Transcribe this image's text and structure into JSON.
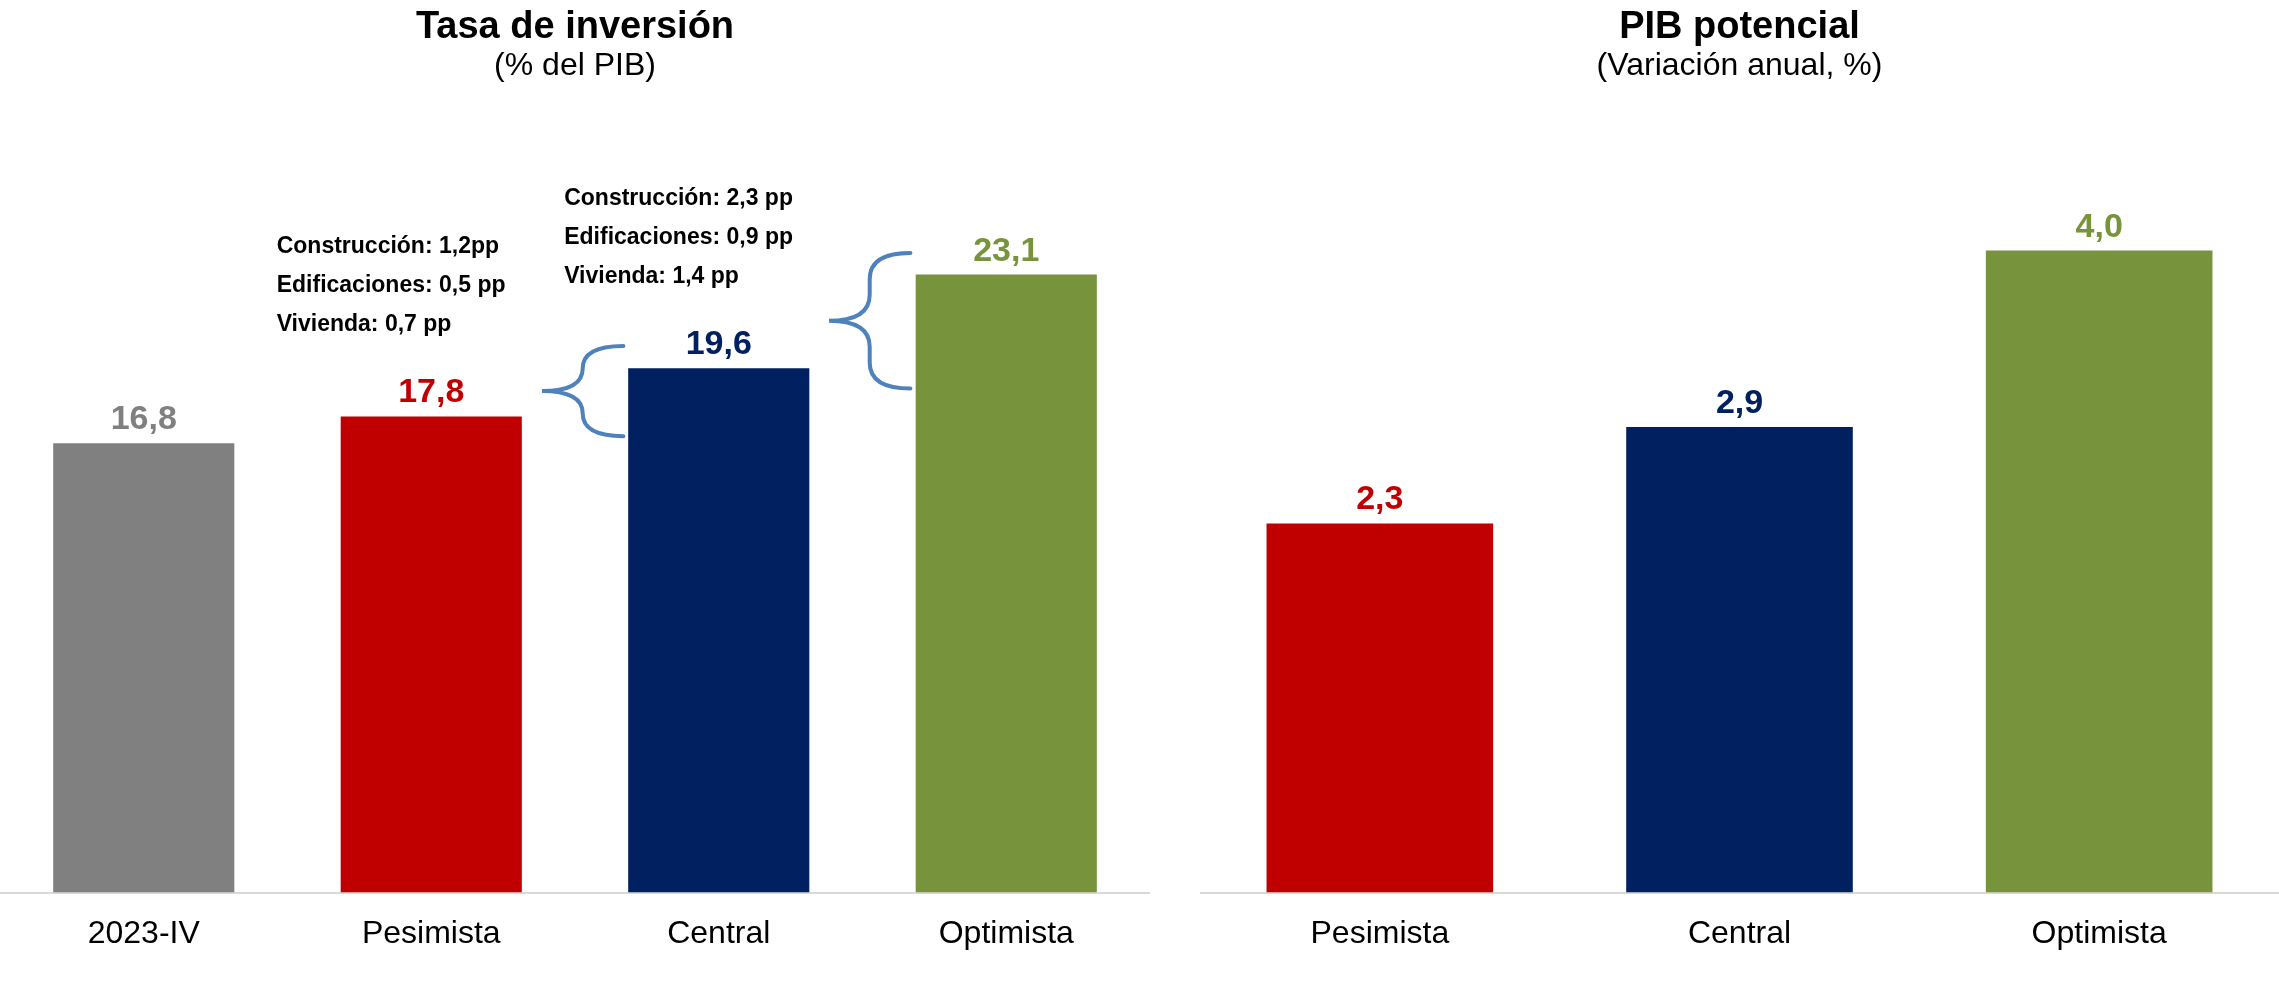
{
  "chart_data": [
    {
      "type": "bar",
      "title": "Tasa de inversión",
      "subtitle": "(% del PIB)",
      "categories": [
        "2023-IV",
        "Pesimista",
        "Central",
        "Optimista"
      ],
      "values": [
        16.8,
        17.8,
        19.6,
        23.1
      ],
      "value_labels": [
        "16,8",
        "17,8",
        "19,6",
        "23,1"
      ],
      "colors": [
        "#808080",
        "#c00000",
        "#002060",
        "#77933c"
      ],
      "annotations": [
        "Construcción: 1,2pp\nEdificaciones: 0,5 pp\nVivienda: 0,7 pp",
        "Construcción: 2,3 pp\nEdificaciones: 0,9 pp\nVivienda: 1,4 pp"
      ]
    },
    {
      "type": "bar",
      "title": "PIB potencial",
      "subtitle": "(Variación anual, %)",
      "categories": [
        "Pesimista",
        "Central",
        "Optimista"
      ],
      "values": [
        2.3,
        2.9,
        4.0
      ],
      "value_labels": [
        "2,3",
        "2,9",
        "4,0"
      ],
      "colors": [
        "#c00000",
        "#002060",
        "#77933c"
      ]
    }
  ]
}
